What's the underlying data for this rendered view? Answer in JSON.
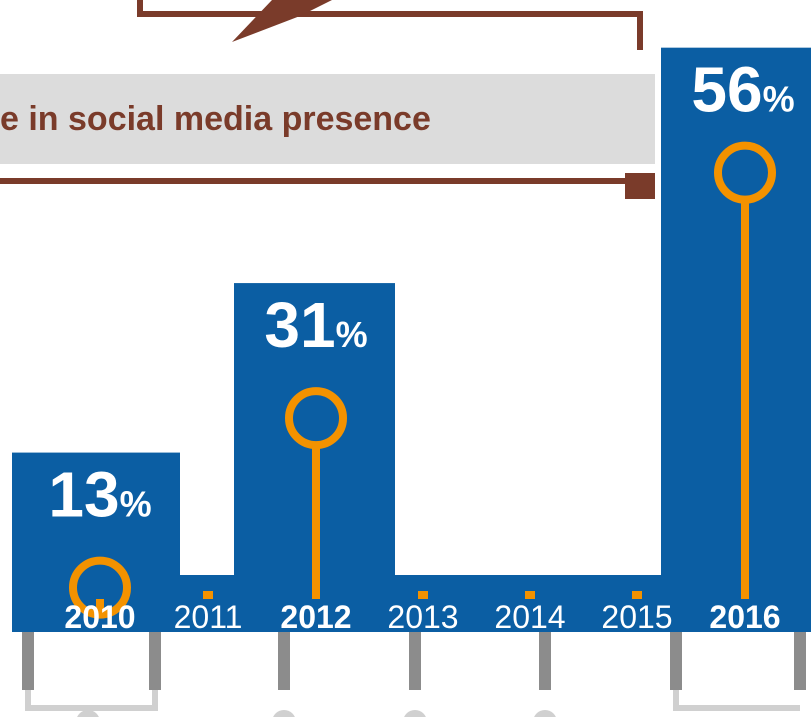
{
  "banner": {
    "text": "e in social media presence"
  },
  "colors": {
    "bar": "#0b5ea3",
    "accent": "#f39200",
    "banner_bg": "#dcdcdc",
    "arrow": "#7a3b2a",
    "connector": "#8c8c8c",
    "connector_light": "#d0d0d0"
  },
  "chart_data": {
    "type": "bar",
    "categories": [
      "2010",
      "2011",
      "2012",
      "2013",
      "2014",
      "2015",
      "2016"
    ],
    "highlighted": [
      "2010",
      "2012",
      "2016"
    ],
    "series": [
      {
        "values": [
          13,
          null,
          31,
          null,
          null,
          null,
          56
        ]
      }
    ],
    "value_labels": [
      "13",
      "",
      "31",
      "",
      "",
      "",
      "56"
    ],
    "unit": "%",
    "ylim": [
      0,
      60
    ],
    "legend": "none",
    "grid": false
  }
}
